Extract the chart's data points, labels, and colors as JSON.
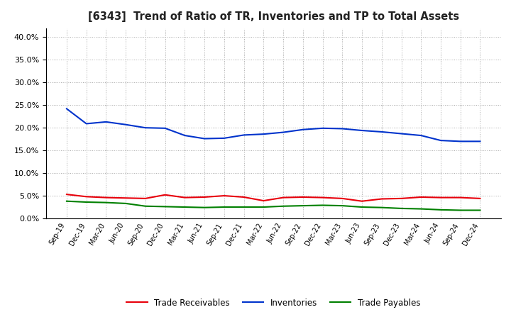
{
  "title": "[6343]  Trend of Ratio of TR, Inventories and TP to Total Assets",
  "x_labels": [
    "Sep-19",
    "Dec-19",
    "Mar-20",
    "Jun-20",
    "Sep-20",
    "Dec-20",
    "Mar-21",
    "Jun-21",
    "Sep-21",
    "Dec-21",
    "Mar-22",
    "Jun-22",
    "Sep-22",
    "Dec-22",
    "Mar-23",
    "Jun-23",
    "Sep-23",
    "Dec-23",
    "Mar-24",
    "Jun-24",
    "Sep-24",
    "Dec-24"
  ],
  "trade_receivables": [
    0.053,
    0.048,
    0.046,
    0.045,
    0.044,
    0.052,
    0.046,
    0.047,
    0.05,
    0.047,
    0.039,
    0.046,
    0.047,
    0.046,
    0.044,
    0.038,
    0.043,
    0.044,
    0.047,
    0.046,
    0.046,
    0.044
  ],
  "inventories": [
    0.242,
    0.209,
    0.213,
    0.207,
    0.2,
    0.199,
    0.183,
    0.176,
    0.177,
    0.184,
    0.186,
    0.19,
    0.196,
    0.199,
    0.198,
    0.194,
    0.191,
    0.187,
    0.183,
    0.172,
    0.17,
    0.17
  ],
  "trade_payables": [
    0.038,
    0.036,
    0.035,
    0.033,
    0.027,
    0.026,
    0.025,
    0.024,
    0.025,
    0.025,
    0.025,
    0.027,
    0.028,
    0.029,
    0.028,
    0.025,
    0.024,
    0.022,
    0.021,
    0.019,
    0.018,
    0.018
  ],
  "ylim": [
    0.0,
    0.42
  ],
  "yticks": [
    0.0,
    0.05,
    0.1,
    0.15,
    0.2,
    0.25,
    0.3,
    0.35,
    0.4
  ],
  "color_tr": "#e8000b",
  "color_inv": "#0033cc",
  "color_tp": "#008000",
  "background_color": "#ffffff",
  "grid_color": "#aaaaaa",
  "legend_labels": [
    "Trade Receivables",
    "Inventories",
    "Trade Payables"
  ]
}
